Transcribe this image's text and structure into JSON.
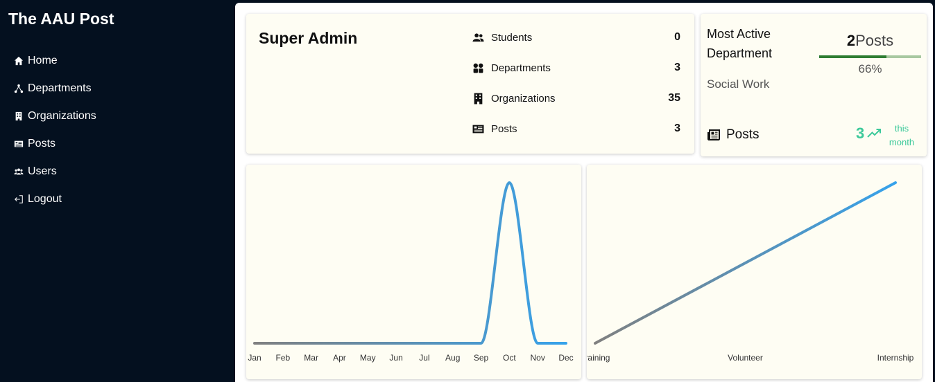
{
  "app": {
    "brand": "The AAU Post"
  },
  "sidebar": {
    "items": [
      {
        "label": "Home",
        "icon": "home-icon"
      },
      {
        "label": "Departments",
        "icon": "sitemap-icon"
      },
      {
        "label": "Organizations",
        "icon": "building-icon"
      },
      {
        "label": "Posts",
        "icon": "newspaper-icon"
      },
      {
        "label": "Users",
        "icon": "users-icon"
      },
      {
        "label": "Logout",
        "icon": "logout-icon"
      }
    ]
  },
  "admin_card": {
    "title": "Super Admin",
    "stats": [
      {
        "label": "Students",
        "value": "0",
        "icon": "user-group-icon"
      },
      {
        "label": "Departments",
        "value": "3",
        "icon": "grid-icon"
      },
      {
        "label": "Organizations",
        "value": "35",
        "icon": "building-icon"
      },
      {
        "label": "Posts",
        "value": "3",
        "icon": "newspaper-icon"
      }
    ]
  },
  "active_card": {
    "title": "Most Active Department",
    "department": "Social Work",
    "posts_count": "2",
    "posts_unit": "Posts",
    "progress": 0.66,
    "progress_label": "66%",
    "posts_label": "Posts",
    "month_count": "3",
    "month_label": "this month"
  },
  "colors": {
    "accent_green": "#3cc99a",
    "progress": "#2e7d32",
    "line_start": "#808080",
    "line_end": "#36a2eb"
  },
  "chart_data": [
    {
      "type": "line",
      "categories": [
        "Jan",
        "Feb",
        "Mar",
        "Apr",
        "May",
        "Jun",
        "Jul",
        "Aug",
        "Sep",
        "Oct",
        "Nov",
        "Dec"
      ],
      "values": [
        0,
        0,
        0,
        0,
        0,
        0,
        0,
        0,
        0,
        3,
        0,
        0
      ],
      "ylim": [
        0,
        3
      ]
    },
    {
      "type": "line",
      "categories": [
        "Training",
        "Volunteer",
        "Internship"
      ],
      "values": [
        0,
        1,
        2
      ],
      "ylim": [
        0,
        2
      ]
    }
  ]
}
